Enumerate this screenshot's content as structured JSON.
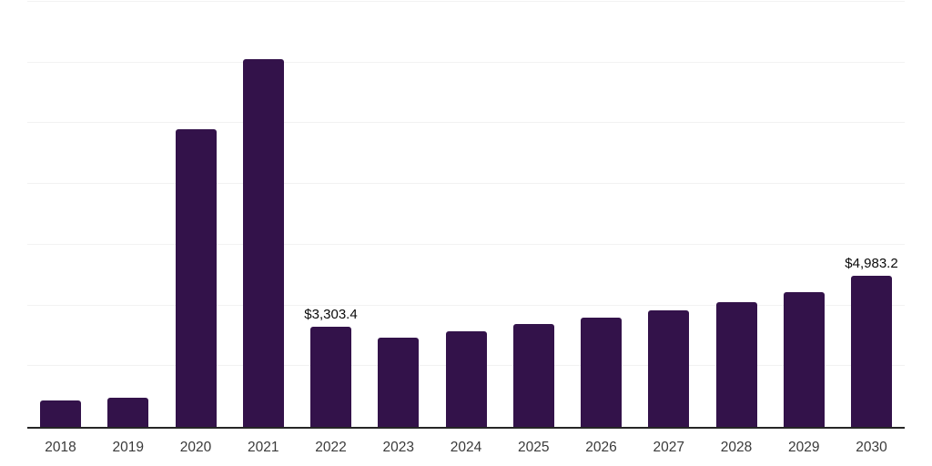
{
  "chart_data": {
    "type": "bar",
    "title": "",
    "xlabel": "",
    "ylabel": "",
    "categories": [
      "2018",
      "2019",
      "2020",
      "2021",
      "2022",
      "2023",
      "2024",
      "2025",
      "2026",
      "2027",
      "2028",
      "2029",
      "2030"
    ],
    "values": [
      870,
      950,
      9800,
      12100,
      3303.4,
      2925,
      3145,
      3375,
      3595,
      3840,
      4095,
      4440,
      4983.2
    ],
    "labeled_points": [
      {
        "category": "2022",
        "label": "$3,303.4"
      },
      {
        "category": "2030",
        "label": "$4,983.2"
      }
    ],
    "ylim": [
      0,
      14000
    ],
    "grid_step": 2000,
    "grid": "horizontal",
    "legend": "none",
    "colors": {
      "bar": "#33124a",
      "axis": "#262626",
      "gridline": "#f2f2f2",
      "value_label": "#0a0a0a",
      "tick_label": "#3a3a3a",
      "background": "#ffffff"
    }
  }
}
